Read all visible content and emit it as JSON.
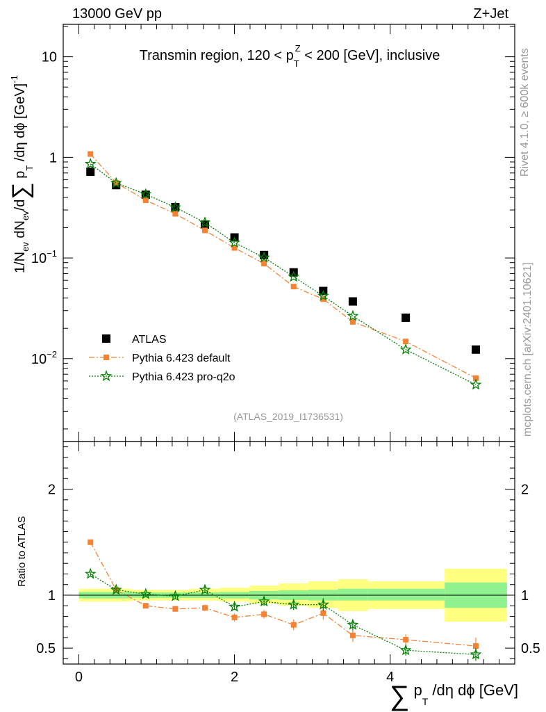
{
  "header": {
    "energy": "13000 GeV pp",
    "process": "Z+Jet"
  },
  "side_labels": {
    "rivet": "Rivet 4.1.0, ≥ 600k events",
    "mcplots": "mcplots.cern.ch [arXiv:2401.10621]"
  },
  "watermark": "(ATLAS_2019_I1736531)",
  "colors": {
    "data": "#000000",
    "default": "#f58232",
    "pro_q2o": "#008000",
    "band_inner": "#8ff28f",
    "band_outer": "#ffff80"
  },
  "chart_data": [
    {
      "type": "scatter",
      "panel": "main",
      "title": "Transmin region, 120 < p_T^Z < 200 [GeV], inclusive",
      "title_parts": {
        "a": "Transmin region, 120 < p",
        "sub": "T",
        "sup": "Z",
        "b": " < 200 [GeV], inclusive"
      },
      "ylabel": "1/N_ev dN_ev/d∑ p_T /dη dϕ [GeV]^-1",
      "ylabel_parts": {
        "p1": "1/N",
        "s1": "ev",
        "p2": " dN",
        "s2": "ev",
        "p3": "/d",
        "sum": "∑",
        "p4": " p",
        "s3": "T",
        "p5": " /dη dϕ  [GeV]",
        "sup": "-1"
      },
      "yscale": "log",
      "ylim": [
        0.0015,
        21
      ],
      "xlim": [
        -0.2,
        5.6
      ],
      "ytick_labels": [
        {
          "value": 10,
          "base": "10",
          "exp": ""
        },
        {
          "value": 1,
          "base": "1",
          "exp": ""
        },
        {
          "value": 0.1,
          "base": "10",
          "exp": "−1"
        },
        {
          "value": 0.01,
          "base": "10",
          "exp": "−2"
        }
      ],
      "legend_position": "lower-left",
      "series": [
        {
          "name": "ATLAS",
          "marker": "square",
          "color": "#000000",
          "x": [
            0.15,
            0.48,
            0.86,
            1.24,
            1.62,
            2.0,
            2.38,
            2.76,
            3.14,
            3.52,
            4.2,
            5.1
          ],
          "y": [
            0.72,
            0.53,
            0.425,
            0.32,
            0.215,
            0.16,
            0.107,
            0.072,
            0.047,
            0.037,
            0.0255,
            0.0123
          ]
        },
        {
          "name": "Pythia 6.423 default",
          "marker": "square-small",
          "line": "dashdot",
          "color": "#f58232",
          "x": [
            0.15,
            0.48,
            0.86,
            1.24,
            1.62,
            2.0,
            2.38,
            2.76,
            3.14,
            3.52,
            4.2,
            5.1
          ],
          "y": [
            1.08,
            0.56,
            0.375,
            0.275,
            0.188,
            0.126,
            0.088,
            0.052,
            0.039,
            0.0232,
            0.0148,
            0.0064
          ]
        },
        {
          "name": "Pythia 6.423 pro-q2o",
          "marker": "star",
          "line": "dotted",
          "color": "#008000",
          "x": [
            0.15,
            0.48,
            0.86,
            1.24,
            1.62,
            2.0,
            2.38,
            2.76,
            3.14,
            3.52,
            4.2,
            5.1
          ],
          "y": [
            0.86,
            0.555,
            0.43,
            0.318,
            0.225,
            0.142,
            0.101,
            0.065,
            0.042,
            0.0265,
            0.0123,
            0.0055
          ]
        }
      ]
    },
    {
      "type": "scatter",
      "panel": "ratio",
      "ylabel": "Ratio to ATLAS",
      "xlabel": "∑ p_T /dη dϕ [GeV]",
      "xlabel_parts": {
        "sum": "∑",
        "p": " p",
        "sub": "T",
        "rest": " /dη dϕ [GeV]"
      },
      "xlim": [
        -0.2,
        5.6
      ],
      "ylim": [
        0.35,
        2.45
      ],
      "xticks": [
        0,
        2,
        4
      ],
      "yticks": [
        0.5,
        1,
        2
      ],
      "bands": {
        "edges": [
          0.0,
          0.3,
          0.67,
          1.05,
          1.43,
          1.81,
          2.19,
          2.57,
          2.95,
          3.33,
          3.71,
          4.7,
          5.5
        ],
        "inner_low": [
          0.97,
          0.97,
          0.975,
          0.975,
          0.975,
          0.97,
          0.96,
          0.955,
          0.95,
          0.95,
          0.95,
          0.88
        ],
        "inner_high": [
          1.03,
          1.03,
          1.025,
          1.025,
          1.025,
          1.03,
          1.04,
          1.045,
          1.05,
          1.06,
          1.06,
          1.12
        ],
        "outer_low": [
          0.94,
          0.94,
          0.95,
          0.95,
          0.95,
          0.94,
          0.92,
          0.9,
          0.88,
          0.85,
          0.87,
          0.75
        ],
        "outer_high": [
          1.06,
          1.06,
          1.05,
          1.05,
          1.06,
          1.07,
          1.09,
          1.11,
          1.13,
          1.15,
          1.13,
          1.25
        ]
      },
      "series": [
        {
          "name": "Pythia 6.423 default",
          "color": "#f58232",
          "x": [
            0.15,
            0.48,
            0.86,
            1.24,
            1.62,
            2.0,
            2.38,
            2.76,
            3.14,
            3.52,
            4.2,
            5.1
          ],
          "y": [
            1.5,
            1.05,
            0.9,
            0.87,
            0.88,
            0.79,
            0.82,
            0.72,
            0.83,
            0.62,
            0.58,
            0.52
          ],
          "err": [
            0.02,
            0.02,
            0.02,
            0.02,
            0.03,
            0.04,
            0.04,
            0.05,
            0.06,
            0.06,
            0.05,
            0.08
          ]
        },
        {
          "name": "Pythia 6.423 pro-q2o",
          "color": "#008000",
          "x": [
            0.15,
            0.48,
            0.86,
            1.24,
            1.62,
            2.0,
            2.38,
            2.76,
            3.14,
            3.52,
            4.2,
            5.1
          ],
          "y": [
            1.2,
            1.05,
            1.01,
            0.99,
            1.05,
            0.89,
            0.94,
            0.91,
            0.91,
            0.72,
            0.48,
            0.44
          ],
          "err": [
            0.02,
            0.02,
            0.02,
            0.02,
            0.03,
            0.03,
            0.04,
            0.05,
            0.06,
            0.05,
            0.05,
            0.06
          ]
        }
      ]
    }
  ]
}
